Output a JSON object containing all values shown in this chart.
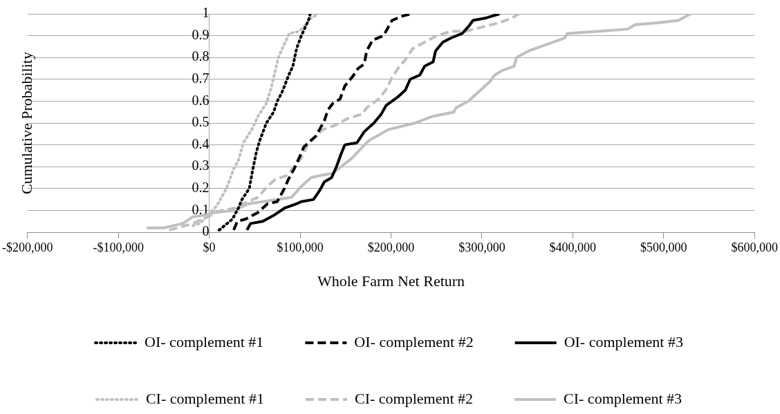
{
  "chart_data": {
    "type": "line",
    "xlabel": "Whole Farm Net Return",
    "ylabel": "Cumulative Probability",
    "xlim": [
      -200000,
      600000
    ],
    "xticks": [
      {
        "value": -200000,
        "label": "-$200,000"
      },
      {
        "value": -100000,
        "label": "-$100,000"
      },
      {
        "value": 0,
        "label": "$0"
      },
      {
        "value": 100000,
        "label": "$100,000"
      },
      {
        "value": 200000,
        "label": "$200,000"
      },
      {
        "value": 300000,
        "label": "$300,000"
      },
      {
        "value": 400000,
        "label": "$400,000"
      },
      {
        "value": 500000,
        "label": "$500,000"
      },
      {
        "value": 600000,
        "label": "$600,000"
      }
    ],
    "ylim": [
      0,
      1
    ],
    "yticks": [
      0,
      0.1,
      0.2,
      0.3,
      0.4,
      0.5,
      0.6,
      0.7,
      0.8,
      0.9,
      1
    ],
    "grid": "y",
    "legend": "bottom",
    "marker": "none",
    "series": [
      {
        "name": "OI- complement #1",
        "color": "#000000",
        "line_style": "dotted",
        "x": [
          10900,
          25500,
          32000,
          36000,
          44000,
          48000,
          52000,
          55600,
          62800,
          70800,
          74800,
          80000,
          87500,
          92000,
          96000,
          101300,
          108000,
          110000,
          111000
        ],
        "values": [
          0.01,
          0.06,
          0.11,
          0.15,
          0.2,
          0.29,
          0.37,
          0.42,
          0.5,
          0.55,
          0.6,
          0.64,
          0.72,
          0.76,
          0.84,
          0.9,
          0.96,
          0.98,
          1
        ]
      },
      {
        "name": "OI- complement #2",
        "color": "#000000",
        "line_style": "dashed",
        "x": [
          26900,
          30900,
          40000,
          53500,
          64000,
          74800,
          82700,
          86800,
          93400,
          100000,
          104000,
          109300,
          117300,
          121300,
          126600,
          130600,
          136000,
          143900,
          149200,
          157200,
          163800,
          170500,
          173200,
          179800,
          191800,
          197100,
          201100,
          213000,
          222000
        ],
        "values": [
          0.01,
          0.05,
          0.06,
          0.09,
          0.13,
          0.14,
          0.2,
          0.24,
          0.29,
          0.35,
          0.39,
          0.41,
          0.44,
          0.47,
          0.51,
          0.56,
          0.59,
          0.61,
          0.67,
          0.71,
          0.75,
          0.77,
          0.83,
          0.88,
          0.9,
          0.94,
          0.97,
          0.99,
          1
        ]
      },
      {
        "name": "OI- complement #3",
        "color": "#000000",
        "line_style": "solid",
        "x": [
          41500,
          45500,
          58800,
          72100,
          82700,
          96000,
          101300,
          114700,
          121300,
          126600,
          134600,
          139900,
          145200,
          149200,
          162600,
          170500,
          181100,
          189100,
          194500,
          207700,
          215700,
          221000,
          231700,
          237000,
          246300,
          249000,
          257000,
          266300,
          278300,
          284900,
          290200,
          303500,
          319400
        ],
        "values": [
          0.01,
          0.04,
          0.05,
          0.08,
          0.11,
          0.13,
          0.14,
          0.15,
          0.19,
          0.23,
          0.25,
          0.3,
          0.36,
          0.4,
          0.41,
          0.46,
          0.5,
          0.54,
          0.58,
          0.62,
          0.65,
          0.7,
          0.72,
          0.76,
          0.78,
          0.83,
          0.87,
          0.89,
          0.91,
          0.94,
          0.97,
          0.98,
          1
        ]
      },
      {
        "name": "CI- complement #1",
        "color": "#bfbfbf",
        "line_style": "dotted",
        "x": [
          -18000,
          -10400,
          8200,
          18900,
          26900,
          32200,
          37500,
          46800,
          53500,
          62800,
          68100,
          72100,
          76000,
          81400,
          88000,
          98700,
          104000,
          112000,
          120000
        ],
        "values": [
          0.03,
          0.04,
          0.12,
          0.2,
          0.29,
          0.33,
          0.41,
          0.47,
          0.53,
          0.59,
          0.66,
          0.73,
          0.8,
          0.85,
          0.91,
          0.92,
          0.94,
          0.98,
          1
        ]
      },
      {
        "name": "CI- complement #2",
        "color": "#bfbfbf",
        "line_style": "dashed",
        "x": [
          -44000,
          -18000,
          13600,
          28000,
          37500,
          53500,
          64000,
          72000,
          85400,
          93400,
          101300,
          109300,
          125300,
          138600,
          151900,
          167800,
          173200,
          186500,
          195800,
          201100,
          207700,
          215700,
          223700,
          237000,
          250300,
          266300,
          282300,
          300800,
          319400,
          332800,
          340800
        ],
        "values": [
          0.01,
          0.04,
          0.1,
          0.11,
          0.13,
          0.16,
          0.21,
          0.24,
          0.26,
          0.3,
          0.34,
          0.41,
          0.47,
          0.49,
          0.52,
          0.54,
          0.57,
          0.61,
          0.66,
          0.71,
          0.75,
          0.79,
          0.84,
          0.87,
          0.9,
          0.92,
          0.92,
          0.94,
          0.96,
          0.98,
          1
        ]
      },
      {
        "name": "CI- complement #3",
        "color": "#bfbfbf",
        "line_style": "solid",
        "x": [
          -68900,
          -50300,
          -29000,
          -18400,
          -2400,
          5600,
          26900,
          42800,
          58800,
          90700,
          101300,
          112000,
          122600,
          136000,
          157200,
          173200,
          175800,
          197100,
          226400,
          245000,
          268900,
          271600,
          284900,
          292900,
          308800,
          314200,
          322100,
          335400,
          338100,
          351400,
          364700,
          378000,
          391300,
          393900,
          428500,
          460400,
          468400,
          495000,
          516300,
          529600
        ],
        "values": [
          0.02,
          0.02,
          0.04,
          0.07,
          0.08,
          0.09,
          0.1,
          0.13,
          0.14,
          0.16,
          0.21,
          0.25,
          0.26,
          0.27,
          0.34,
          0.41,
          0.42,
          0.47,
          0.5,
          0.53,
          0.55,
          0.57,
          0.6,
          0.63,
          0.69,
          0.72,
          0.74,
          0.76,
          0.8,
          0.83,
          0.85,
          0.87,
          0.89,
          0.91,
          0.92,
          0.93,
          0.95,
          0.96,
          0.97,
          1
        ]
      }
    ]
  }
}
